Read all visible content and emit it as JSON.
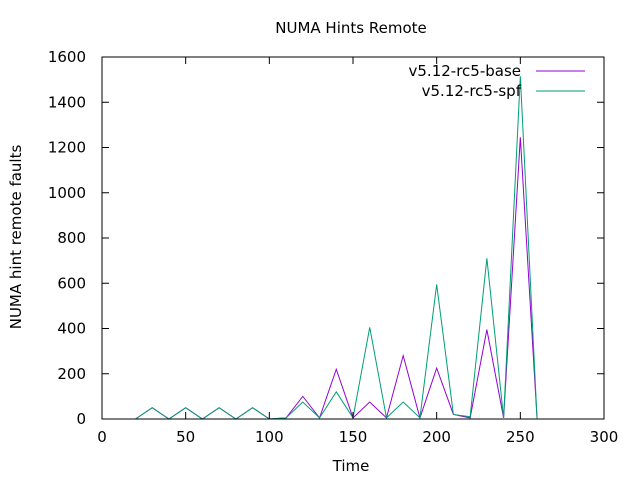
{
  "chart_data": {
    "type": "line",
    "title": "NUMA Hints Remote",
    "xlabel": "Time",
    "ylabel": "NUMA hint remote faults",
    "xlim": [
      0,
      300
    ],
    "ylim": [
      0,
      1600
    ],
    "xticks": [
      0,
      50,
      100,
      150,
      200,
      250,
      300
    ],
    "yticks": [
      0,
      200,
      400,
      600,
      800,
      1000,
      1200,
      1400,
      1600
    ],
    "grid": false,
    "legend_position": "top-right",
    "series": [
      {
        "name": "v5.12-rc5-base",
        "color": "#9400d3",
        "points": [
          [
            20,
            0
          ],
          [
            30,
            50
          ],
          [
            40,
            0
          ],
          [
            50,
            50
          ],
          [
            60,
            0
          ],
          [
            70,
            50
          ],
          [
            80,
            0
          ],
          [
            90,
            50
          ],
          [
            100,
            0
          ],
          [
            110,
            5
          ],
          [
            120,
            100
          ],
          [
            130,
            5
          ],
          [
            140,
            220
          ],
          [
            150,
            5
          ],
          [
            160,
            75
          ],
          [
            170,
            5
          ],
          [
            180,
            280
          ],
          [
            190,
            5
          ],
          [
            200,
            225
          ],
          [
            210,
            20
          ],
          [
            220,
            5
          ],
          [
            230,
            395
          ],
          [
            240,
            5
          ],
          [
            250,
            1245
          ],
          [
            260,
            0
          ]
        ]
      },
      {
        "name": "v5.12-rc5-spf",
        "color": "#009e73",
        "points": [
          [
            20,
            0
          ],
          [
            30,
            50
          ],
          [
            40,
            0
          ],
          [
            50,
            50
          ],
          [
            60,
            0
          ],
          [
            70,
            50
          ],
          [
            80,
            0
          ],
          [
            90,
            50
          ],
          [
            100,
            0
          ],
          [
            110,
            5
          ],
          [
            120,
            75
          ],
          [
            130,
            5
          ],
          [
            140,
            120
          ],
          [
            150,
            5
          ],
          [
            160,
            405
          ],
          [
            170,
            5
          ],
          [
            180,
            75
          ],
          [
            190,
            5
          ],
          [
            200,
            595
          ],
          [
            210,
            20
          ],
          [
            220,
            10
          ],
          [
            230,
            710
          ],
          [
            240,
            5
          ],
          [
            250,
            1515
          ],
          [
            260,
            0
          ]
        ]
      }
    ]
  }
}
